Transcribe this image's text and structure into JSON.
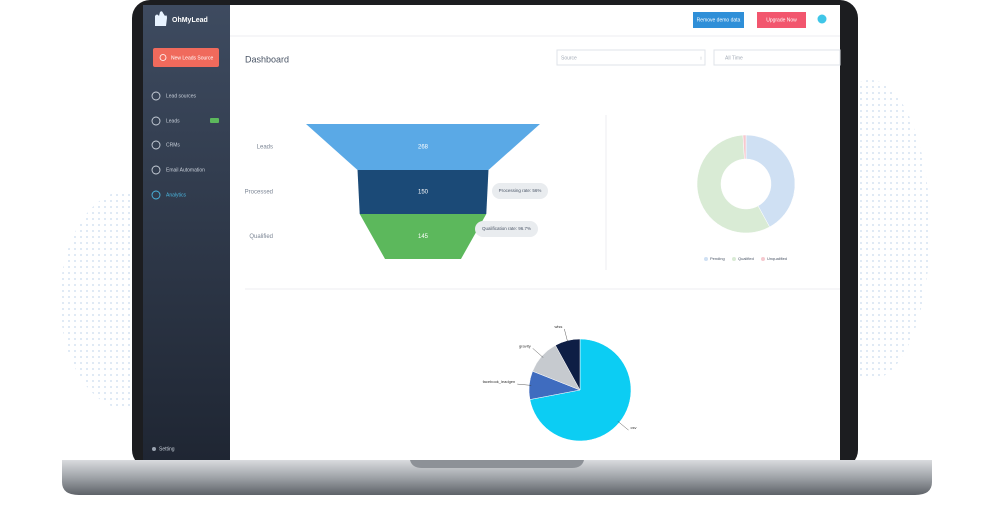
{
  "app": {
    "logo": "OhMyLead",
    "new_source_button": "New Leads Source",
    "menu": [
      "Lead sources",
      "Leads",
      "CRMs",
      "Email Automation",
      "Analytics"
    ],
    "settings": "Setting"
  },
  "header": {
    "remove_demo_button": "Remove demo data",
    "upgrade_button": "Upgrade Now"
  },
  "dashboard": {
    "title": "Dashboard",
    "source_select": "Source",
    "time_select": "All Time"
  },
  "chart_data": [
    {
      "type": "funnel",
      "categories": [
        "Leads",
        "Processed",
        "Qualified"
      ],
      "values": [
        268,
        150,
        145
      ],
      "colors": [
        "#5aa9e6",
        "#1b4a77",
        "#5cb85c"
      ],
      "annotations": [
        "Processing rate: 56%",
        "Qualification rate: 96.7%"
      ]
    },
    {
      "type": "donut",
      "series": [
        {
          "name": "Pending",
          "color": "#cfe0f3",
          "value": 42
        },
        {
          "name": "Qualified",
          "color": "#d9ebd5",
          "value": 57
        },
        {
          "name": "Unqualified",
          "color": "#f6c9cf",
          "value": 1
        }
      ]
    },
    {
      "type": "pie",
      "series": [
        {
          "name": "csv",
          "color": "#0ccdf3",
          "value": 72
        },
        {
          "name": "facebook_leadgen",
          "color": "#3f6cbf",
          "value": 9
        },
        {
          "name": "gravity",
          "color": "#c6cacf",
          "value": 11
        },
        {
          "name": "wlss",
          "color": "#0e1e45",
          "value": 8
        }
      ]
    }
  ]
}
